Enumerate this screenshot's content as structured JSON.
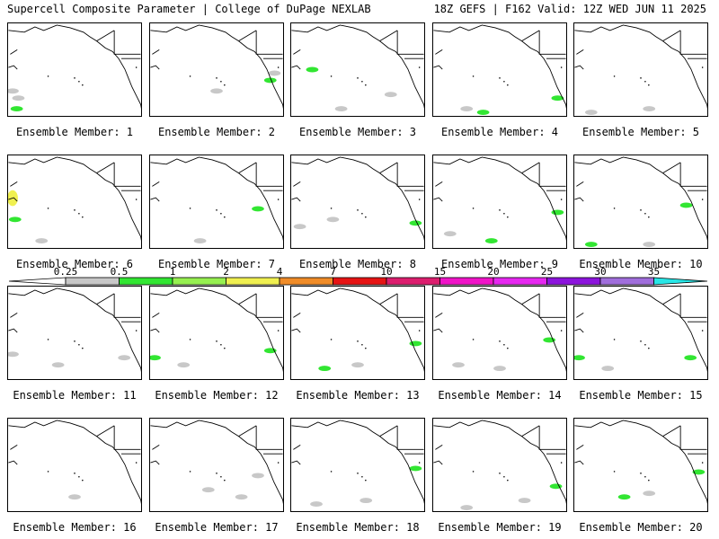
{
  "header": {
    "left": "Supercell Composite Parameter | College of DuPage NEXLAB",
    "right": "18Z GEFS | F162 Valid: 12Z WED JUN 11 2025"
  },
  "colorbar": {
    "ticks": [
      "0.25",
      "0.5",
      "1",
      "2",
      "4",
      "7",
      "10",
      "15",
      "20",
      "25",
      "30",
      "35"
    ],
    "colors": [
      "#c8c8c8",
      "#32e632",
      "#96f050",
      "#f0f050",
      "#f08c28",
      "#e61414",
      "#dc1e6e",
      "#f014c8",
      "#e628f0",
      "#8c14dc",
      "#a06edc",
      "#28e6e6"
    ]
  },
  "members": [
    {
      "label": "Ensemble Member: 1",
      "blobs": [
        {
          "c": "g",
          "x": 5,
          "y": 95
        },
        {
          "c": "g",
          "x": 12,
          "y": 105
        },
        {
          "c": "lg",
          "x": 10,
          "y": 120
        }
      ]
    },
    {
      "label": "Ensemble Member: 2",
      "blobs": [
        {
          "c": "g",
          "x": 80,
          "y": 95
        },
        {
          "c": "g",
          "x": 150,
          "y": 70
        },
        {
          "c": "lg",
          "x": 145,
          "y": 80
        }
      ]
    },
    {
      "label": "Ensemble Member: 3",
      "blobs": [
        {
          "c": "g",
          "x": 60,
          "y": 120
        },
        {
          "c": "g",
          "x": 120,
          "y": 100
        },
        {
          "c": "lg",
          "x": 25,
          "y": 65
        }
      ]
    },
    {
      "label": "Ensemble Member: 4",
      "blobs": [
        {
          "c": "lg",
          "x": 60,
          "y": 125
        },
        {
          "c": "g",
          "x": 40,
          "y": 120
        },
        {
          "c": "lg",
          "x": 150,
          "y": 105
        }
      ]
    },
    {
      "label": "Ensemble Member: 5",
      "blobs": [
        {
          "c": "g",
          "x": 90,
          "y": 120
        },
        {
          "c": "g",
          "x": 20,
          "y": 125
        }
      ]
    },
    {
      "label": "Ensemble Member: 6",
      "blobs": [
        {
          "c": "y",
          "x": 5,
          "y": 60
        },
        {
          "c": "lg",
          "x": 8,
          "y": 90
        },
        {
          "c": "g",
          "x": 40,
          "y": 120
        }
      ]
    },
    {
      "label": "Ensemble Member: 7",
      "blobs": [
        {
          "c": "g",
          "x": 60,
          "y": 120
        },
        {
          "c": "lg",
          "x": 130,
          "y": 75
        }
      ]
    },
    {
      "label": "Ensemble Member: 8",
      "blobs": [
        {
          "c": "g",
          "x": 10,
          "y": 100
        },
        {
          "c": "g",
          "x": 50,
          "y": 90
        },
        {
          "c": "lg",
          "x": 150,
          "y": 95
        }
      ]
    },
    {
      "label": "Ensemble Member: 9",
      "blobs": [
        {
          "c": "lg",
          "x": 70,
          "y": 120
        },
        {
          "c": "g",
          "x": 20,
          "y": 110
        },
        {
          "c": "lg",
          "x": 150,
          "y": 80
        }
      ]
    },
    {
      "label": "Ensemble Member: 10",
      "blobs": [
        {
          "c": "lg",
          "x": 20,
          "y": 125
        },
        {
          "c": "lg",
          "x": 135,
          "y": 70
        },
        {
          "c": "g",
          "x": 90,
          "y": 125
        }
      ]
    },
    {
      "label": "Ensemble Member: 11",
      "blobs": [
        {
          "c": "g",
          "x": 5,
          "y": 95
        },
        {
          "c": "g",
          "x": 60,
          "y": 110
        },
        {
          "c": "g",
          "x": 140,
          "y": 100
        }
      ]
    },
    {
      "label": "Ensemble Member: 12",
      "blobs": [
        {
          "c": "lg",
          "x": 5,
          "y": 100
        },
        {
          "c": "g",
          "x": 40,
          "y": 110
        },
        {
          "c": "lg",
          "x": 145,
          "y": 90
        }
      ]
    },
    {
      "label": "Ensemble Member: 13",
      "blobs": [
        {
          "c": "lg",
          "x": 40,
          "y": 115
        },
        {
          "c": "g",
          "x": 80,
          "y": 110
        },
        {
          "c": "lg",
          "x": 150,
          "y": 80
        }
      ]
    },
    {
      "label": "Ensemble Member: 14",
      "blobs": [
        {
          "c": "g",
          "x": 30,
          "y": 110
        },
        {
          "c": "g",
          "x": 80,
          "y": 115
        },
        {
          "c": "lg",
          "x": 140,
          "y": 75
        }
      ]
    },
    {
      "label": "Ensemble Member: 15",
      "blobs": [
        {
          "c": "lg",
          "x": 5,
          "y": 100
        },
        {
          "c": "g",
          "x": 40,
          "y": 115
        },
        {
          "c": "lg",
          "x": 140,
          "y": 100
        }
      ]
    },
    {
      "label": "Ensemble Member: 16",
      "blobs": [
        {
          "c": "g",
          "x": 80,
          "y": 110
        }
      ]
    },
    {
      "label": "Ensemble Member: 17",
      "blobs": [
        {
          "c": "g",
          "x": 70,
          "y": 100
        },
        {
          "c": "g",
          "x": 110,
          "y": 110
        },
        {
          "c": "g",
          "x": 130,
          "y": 80
        }
      ]
    },
    {
      "label": "Ensemble Member: 18",
      "blobs": [
        {
          "c": "g",
          "x": 30,
          "y": 120
        },
        {
          "c": "lg",
          "x": 150,
          "y": 70
        },
        {
          "c": "g",
          "x": 90,
          "y": 115
        }
      ]
    },
    {
      "label": "Ensemble Member: 19",
      "blobs": [
        {
          "c": "g",
          "x": 40,
          "y": 125
        },
        {
          "c": "g",
          "x": 110,
          "y": 115
        },
        {
          "c": "lg",
          "x": 148,
          "y": 95
        }
      ]
    },
    {
      "label": "Ensemble Member: 20",
      "blobs": [
        {
          "c": "lg",
          "x": 60,
          "y": 110
        },
        {
          "c": "g",
          "x": 90,
          "y": 105
        },
        {
          "c": "lg",
          "x": 150,
          "y": 75
        }
      ]
    }
  ]
}
